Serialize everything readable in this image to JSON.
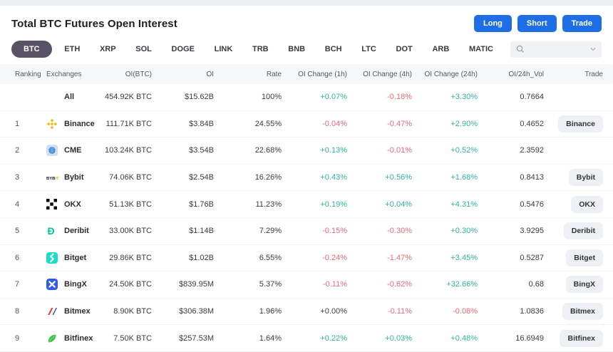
{
  "header": {
    "title": "Total BTC Futures Open Interest",
    "buttons": [
      "Long",
      "Short",
      "Trade"
    ]
  },
  "tabs": {
    "selected": "BTC",
    "items": [
      "BTC",
      "ETH",
      "XRP",
      "SOL",
      "DOGE",
      "LINK",
      "TRB",
      "BNB",
      "BCH",
      "LTC",
      "DOT",
      "ARB",
      "MATIC"
    ]
  },
  "search": {
    "placeholder": ""
  },
  "table": {
    "columns": [
      "Ranking",
      "Exchanges",
      "OI(BTC)",
      "OI",
      "Rate",
      "OI Change (1h)",
      "OI Change (4h)",
      "OI Change (24h)",
      "OI/24h_Vol",
      "Trade"
    ],
    "rows": [
      {
        "rank": "",
        "name": "All",
        "icon": "",
        "oi_btc": "454.92K BTC",
        "oi": "$15.62B",
        "rate": "100%",
        "chg_1h": {
          "text": "+0.07%",
          "dir": "up"
        },
        "chg_4h": {
          "text": "-0.18%",
          "dir": "down"
        },
        "chg_24h": {
          "text": "+3.30%",
          "dir": "up"
        },
        "vol": "0.7664",
        "trade_label": ""
      },
      {
        "rank": "1",
        "name": "Binance",
        "icon": "binance-icon",
        "oi_btc": "111.71K BTC",
        "oi": "$3.84B",
        "rate": "24.55%",
        "chg_1h": {
          "text": "-0.04%",
          "dir": "down"
        },
        "chg_4h": {
          "text": "-0.47%",
          "dir": "down"
        },
        "chg_24h": {
          "text": "+2.90%",
          "dir": "up"
        },
        "vol": "0.4652",
        "trade_label": "Binance"
      },
      {
        "rank": "2",
        "name": "CME",
        "icon": "cme-icon",
        "oi_btc": "103.24K BTC",
        "oi": "$3.54B",
        "rate": "22.68%",
        "chg_1h": {
          "text": "+0.13%",
          "dir": "up"
        },
        "chg_4h": {
          "text": "-0.01%",
          "dir": "down"
        },
        "chg_24h": {
          "text": "+0.52%",
          "dir": "up"
        },
        "vol": "2.3592",
        "trade_label": ""
      },
      {
        "rank": "3",
        "name": "Bybit",
        "icon": "bybit-icon",
        "oi_btc": "74.06K BTC",
        "oi": "$2.54B",
        "rate": "16.26%",
        "chg_1h": {
          "text": "+0.43%",
          "dir": "up"
        },
        "chg_4h": {
          "text": "+0.56%",
          "dir": "up"
        },
        "chg_24h": {
          "text": "+1.68%",
          "dir": "up"
        },
        "vol": "0.8413",
        "trade_label": "Bybit"
      },
      {
        "rank": "4",
        "name": "OKX",
        "icon": "okx-icon",
        "oi_btc": "51.13K BTC",
        "oi": "$1.76B",
        "rate": "11.23%",
        "chg_1h": {
          "text": "+0.19%",
          "dir": "up"
        },
        "chg_4h": {
          "text": "+0.04%",
          "dir": "up"
        },
        "chg_24h": {
          "text": "+4.31%",
          "dir": "up"
        },
        "vol": "0.5476",
        "trade_label": "OKX"
      },
      {
        "rank": "5",
        "name": "Deribit",
        "icon": "deribit-icon",
        "oi_btc": "33.00K BTC",
        "oi": "$1.14B",
        "rate": "7.29%",
        "chg_1h": {
          "text": "-0.15%",
          "dir": "down"
        },
        "chg_4h": {
          "text": "-0.30%",
          "dir": "down"
        },
        "chg_24h": {
          "text": "+0.30%",
          "dir": "up"
        },
        "vol": "3.9295",
        "trade_label": "Deribit"
      },
      {
        "rank": "6",
        "name": "Bitget",
        "icon": "bitget-icon",
        "oi_btc": "29.86K BTC",
        "oi": "$1.02B",
        "rate": "6.55%",
        "chg_1h": {
          "text": "-0.24%",
          "dir": "down"
        },
        "chg_4h": {
          "text": "-1.47%",
          "dir": "down"
        },
        "chg_24h": {
          "text": "+3.45%",
          "dir": "up"
        },
        "vol": "0.5287",
        "trade_label": "Bitget"
      },
      {
        "rank": "7",
        "name": "BingX",
        "icon": "bingx-icon",
        "oi_btc": "24.50K BTC",
        "oi": "$839.95M",
        "rate": "5.37%",
        "chg_1h": {
          "text": "-0.11%",
          "dir": "down"
        },
        "chg_4h": {
          "text": "-0.62%",
          "dir": "down"
        },
        "chg_24h": {
          "text": "+32.66%",
          "dir": "up"
        },
        "vol": "0.68",
        "trade_label": "BingX"
      },
      {
        "rank": "8",
        "name": "Bitmex",
        "icon": "bitmex-icon",
        "oi_btc": "8.90K BTC",
        "oi": "$306.38M",
        "rate": "1.96%",
        "chg_1h": {
          "text": "+0.00%",
          "dir": "flat"
        },
        "chg_4h": {
          "text": "-0.11%",
          "dir": "down"
        },
        "chg_24h": {
          "text": "-0.08%",
          "dir": "down"
        },
        "vol": "1.0836",
        "trade_label": "Bitmex"
      },
      {
        "rank": "9",
        "name": "Bitfinex",
        "icon": "bitfinex-icon",
        "oi_btc": "7.50K BTC",
        "oi": "$257.53M",
        "rate": "1.64%",
        "chg_1h": {
          "text": "+0.22%",
          "dir": "up"
        },
        "chg_4h": {
          "text": "+0.03%",
          "dir": "up"
        },
        "chg_24h": {
          "text": "+0.48%",
          "dir": "up"
        },
        "vol": "16.6949",
        "trade_label": "Bitfinex"
      }
    ]
  },
  "colors": {
    "up": "#2fb795",
    "down": "#f1677a",
    "flat": "#3f3f49",
    "accent_blue": "#1e6fe6",
    "tab_selected_bg": "#575365"
  }
}
